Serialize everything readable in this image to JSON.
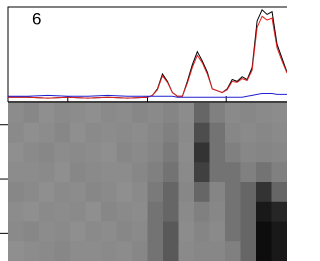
{
  "chart_data": [
    {
      "type": "line",
      "annotation": "6",
      "x": [
        0,
        20,
        40,
        60,
        80,
        100,
        120,
        140,
        145,
        150,
        155,
        160,
        165,
        170,
        175,
        180,
        185,
        190,
        195,
        200,
        205,
        210,
        215,
        220,
        225,
        230,
        235,
        240,
        245,
        250,
        255,
        260,
        265,
        270,
        275,
        280
      ],
      "series": [
        {
          "color": "#000000",
          "values": [
            3,
            3,
            2,
            3,
            2,
            3,
            2,
            3,
            5,
            12,
            28,
            20,
            8,
            4,
            4,
            20,
            38,
            52,
            42,
            30,
            12,
            10,
            8,
            12,
            22,
            20,
            25,
            22,
            35,
            85,
            97,
            92,
            95,
            60,
            45,
            30
          ]
        },
        {
          "color": "#e02020",
          "values": [
            3,
            3,
            2,
            3,
            2,
            3,
            2,
            3,
            5,
            11,
            26,
            19,
            8,
            4,
            4,
            18,
            35,
            48,
            40,
            28,
            12,
            10,
            8,
            11,
            20,
            19,
            23,
            21,
            32,
            78,
            90,
            86,
            88,
            56,
            42,
            29
          ]
        },
        {
          "color": "#2020d0",
          "values": [
            4,
            4,
            5,
            4,
            4,
            5,
            4,
            4,
            4,
            4,
            4,
            4,
            4,
            3,
            3,
            3,
            3,
            3,
            3,
            3,
            3,
            3,
            3,
            3,
            3,
            3,
            3,
            4,
            5,
            6,
            7,
            7,
            7,
            6,
            6,
            6
          ]
        }
      ],
      "xlim": [
        0,
        280
      ],
      "ylim": [
        0,
        100
      ],
      "xticks": [
        60,
        140,
        219
      ]
    },
    {
      "type": "heatmap",
      "ylim": [
        0,
        8
      ],
      "yticks": [
        1.1,
        3.85,
        6.6
      ],
      "values": [
        [
          0.45,
          0.47,
          0.44,
          0.46,
          0.45,
          0.44,
          0.46,
          0.45,
          0.47,
          0.46,
          0.48,
          0.45,
          0.6,
          0.5,
          0.46,
          0.47,
          0.46,
          0.45
        ],
        [
          0.46,
          0.44,
          0.45,
          0.47,
          0.44,
          0.46,
          0.45,
          0.46,
          0.45,
          0.47,
          0.5,
          0.46,
          0.7,
          0.55,
          0.47,
          0.46,
          0.47,
          0.46
        ],
        [
          0.44,
          0.46,
          0.47,
          0.45,
          0.46,
          0.45,
          0.44,
          0.47,
          0.46,
          0.48,
          0.52,
          0.45,
          0.8,
          0.55,
          0.5,
          0.47,
          0.48,
          0.47
        ],
        [
          0.45,
          0.45,
          0.46,
          0.44,
          0.47,
          0.46,
          0.45,
          0.45,
          0.47,
          0.5,
          0.55,
          0.46,
          0.75,
          0.55,
          0.55,
          0.5,
          0.55,
          0.5
        ],
        [
          0.47,
          0.46,
          0.44,
          0.46,
          0.45,
          0.47,
          0.46,
          0.44,
          0.46,
          0.52,
          0.6,
          0.47,
          0.6,
          0.48,
          0.55,
          0.6,
          0.8,
          0.6
        ],
        [
          0.45,
          0.44,
          0.46,
          0.45,
          0.46,
          0.44,
          0.47,
          0.46,
          0.45,
          0.55,
          0.6,
          0.46,
          0.5,
          0.47,
          0.55,
          0.6,
          0.9,
          0.85
        ],
        [
          0.46,
          0.47,
          0.45,
          0.46,
          0.44,
          0.46,
          0.45,
          0.47,
          0.46,
          0.55,
          0.65,
          0.45,
          0.48,
          0.46,
          0.55,
          0.6,
          0.95,
          0.9
        ],
        [
          0.44,
          0.45,
          0.46,
          0.47,
          0.45,
          0.45,
          0.46,
          0.45,
          0.47,
          0.55,
          0.65,
          0.46,
          0.47,
          0.47,
          0.5,
          0.6,
          0.95,
          0.9
        ]
      ]
    }
  ]
}
